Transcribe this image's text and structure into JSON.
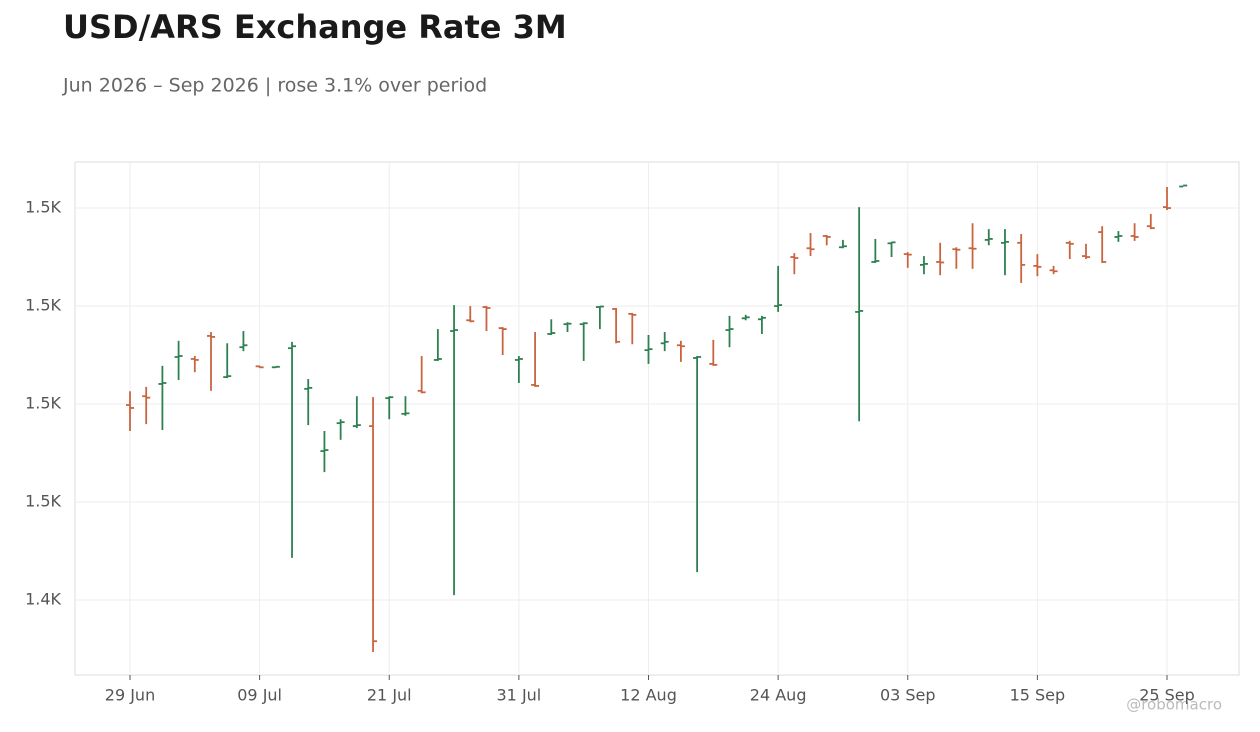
{
  "chart_data": {
    "type": "ohlc",
    "title": "USD/ARS Exchange Rate 3M",
    "subtitle": "Jun 2026 – Sep 2026 | rose 3.1% over period",
    "watermark": "@robomacro",
    "categories": [
      "29 Jun",
      null,
      null,
      null,
      null,
      null,
      null,
      null,
      "09 Jul",
      null,
      null,
      null,
      null,
      null,
      null,
      null,
      "21 Jul",
      null,
      null,
      null,
      null,
      null,
      null,
      null,
      "31 Jul",
      null,
      null,
      null,
      null,
      null,
      null,
      null,
      "12 Aug",
      null,
      null,
      null,
      null,
      null,
      null,
      null,
      "24 Aug",
      null,
      null,
      null,
      null,
      null,
      null,
      null,
      "03 Sep",
      null,
      null,
      null,
      null,
      null,
      null,
      null,
      "15 Sep",
      null,
      null,
      null,
      null,
      null,
      null,
      null,
      "25 Sep",
      null
    ],
    "open": [
      1479.8,
      1481.6,
      1484.1,
      1489.6,
      1489.2,
      1493.9,
      1485.5,
      1491.6,
      1487.7,
      1487.5,
      1491.4,
      1483.1,
      1470.4,
      1476.1,
      1475.5,
      1475.5,
      1481.2,
      1478.0,
      1482.7,
      1489.0,
      1494.9,
      1497.1,
      1499.8,
      1495.5,
      1489.0,
      1483.9,
      1494.3,
      1496.3,
      1496.3,
      1499.8,
      1499.4,
      1498.4,
      1491.0,
      1492.4,
      1492.0,
      1489.4,
      1488.2,
      1495.1,
      1497.5,
      1497.3,
      1500.0,
      1510.0,
      1511.8,
      1514.3,
      1512.0,
      1498.8,
      1509.0,
      1512.8,
      1510.6,
      1508.4,
      1509.0,
      1511.6,
      1511.8,
      1513.5,
      1512.9,
      1512.9,
      1508.2,
      1507.3,
      1512.9,
      1510.2,
      1515.1,
      1514.1,
      1514.3,
      1516.3,
      1520.2,
      1524.4
    ],
    "high": [
      1482.6,
      1483.5,
      1487.8,
      1492.9,
      1489.8,
      1494.7,
      1492.4,
      1494.9,
      1487.8,
      1487.7,
      1492.7,
      1485.1,
      1474.5,
      1476.9,
      1481.6,
      1481.4,
      1481.6,
      1481.6,
      1489.8,
      1495.3,
      1500.2,
      1500.0,
      1500.0,
      1495.7,
      1489.8,
      1494.7,
      1497.3,
      1496.7,
      1496.7,
      1500.0,
      1499.6,
      1498.6,
      1494.1,
      1494.7,
      1492.9,
      1489.8,
      1493.1,
      1498.0,
      1498.2,
      1498.0,
      1508.2,
      1510.8,
      1514.9,
      1514.5,
      1513.5,
      1520.2,
      1513.7,
      1513.1,
      1511.0,
      1510.2,
      1512.9,
      1512.0,
      1516.9,
      1515.7,
      1515.7,
      1514.7,
      1510.6,
      1508.2,
      1513.3,
      1512.7,
      1516.3,
      1515.3,
      1516.9,
      1518.8,
      1524.3,
      1524.6
    ],
    "low": [
      1474.5,
      1475.9,
      1474.7,
      1484.9,
      1486.5,
      1482.7,
      1485.3,
      1490.8,
      1487.4,
      1487.4,
      1448.6,
      1475.7,
      1466.1,
      1472.7,
      1475.1,
      1429.4,
      1476.9,
      1477.6,
      1482.2,
      1488.8,
      1441.0,
      1496.7,
      1494.9,
      1490.0,
      1484.3,
      1483.5,
      1494.1,
      1494.7,
      1488.8,
      1495.3,
      1492.4,
      1492.2,
      1488.2,
      1490.8,
      1488.6,
      1445.7,
      1487.8,
      1491.6,
      1497.1,
      1494.3,
      1498.8,
      1506.5,
      1510.2,
      1512.4,
      1511.8,
      1476.5,
      1508.8,
      1510.0,
      1507.8,
      1506.5,
      1506.3,
      1507.6,
      1507.6,
      1512.4,
      1506.3,
      1504.7,
      1506.1,
      1506.5,
      1509.6,
      1509.6,
      1508.8,
      1513.1,
      1513.3,
      1515.7,
      1519.6,
      1524.4
    ],
    "close": [
      1479.2,
      1481.3,
      1484.3,
      1489.8,
      1489.0,
      1493.7,
      1485.7,
      1492.0,
      1487.5,
      1487.6,
      1491.8,
      1483.3,
      1470.6,
      1476.3,
      1475.7,
      1431.6,
      1481.4,
      1478.1,
      1482.4,
      1489.2,
      1495.1,
      1496.9,
      1499.6,
      1495.3,
      1489.2,
      1483.7,
      1494.5,
      1496.4,
      1496.5,
      1499.9,
      1492.7,
      1498.2,
      1491.2,
      1492.7,
      1491.8,
      1489.6,
      1488.0,
      1495.3,
      1497.7,
      1497.6,
      1500.2,
      1509.8,
      1511.6,
      1514.1,
      1512.2,
      1499.0,
      1509.2,
      1513.0,
      1510.5,
      1508.6,
      1508.9,
      1511.5,
      1511.7,
      1513.7,
      1513.1,
      1508.4,
      1508.0,
      1507.1,
      1512.7,
      1510.0,
      1509.0,
      1514.3,
      1514.1,
      1515.9,
      1520.0,
      1524.6
    ],
    "up_color": "#2e8050",
    "down_color": "#c9643f",
    "ylim": [
      1424.7,
      1529.4
    ],
    "yticks": [
      {
        "value": 1440,
        "label": "1.4K"
      },
      {
        "value": 1460,
        "label": "1.5K"
      },
      {
        "value": 1480,
        "label": "1.5K"
      },
      {
        "value": 1500,
        "label": "1.5K"
      },
      {
        "value": 1520,
        "label": "1.5K"
      }
    ],
    "grid": true
  }
}
